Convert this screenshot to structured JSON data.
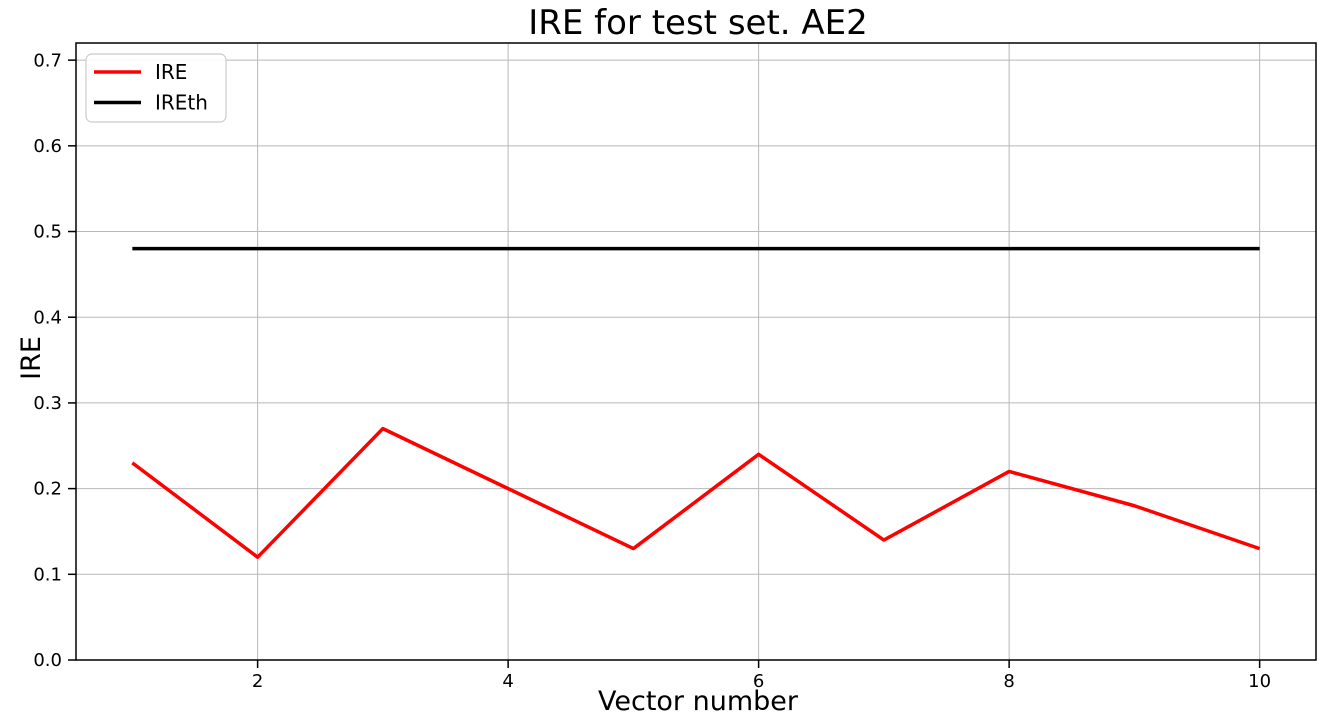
{
  "figure": {
    "background": "#ffffff"
  },
  "chart_data": {
    "type": "line",
    "title": "IRE for test set. AE2",
    "xlabel": "Vector number",
    "ylabel": "IRE",
    "x": [
      1,
      2,
      3,
      4,
      5,
      6,
      7,
      8,
      9,
      10
    ],
    "series": [
      {
        "name": "IRE",
        "color": "#ff0000",
        "values": [
          0.23,
          0.12,
          0.27,
          0.2,
          0.13,
          0.24,
          0.14,
          0.22,
          0.18,
          0.13
        ]
      },
      {
        "name": "IREth",
        "color": "#000000",
        "values": [
          0.48,
          0.48,
          0.48,
          0.48,
          0.48,
          0.48,
          0.48,
          0.48,
          0.48,
          0.48
        ]
      }
    ],
    "xlim": [
      0.55,
      10.45
    ],
    "ylim": [
      0,
      0.72
    ],
    "xticks": {
      "values": [
        2,
        4,
        6,
        8,
        10
      ],
      "labels": [
        "2",
        "4",
        "6",
        "8",
        "10"
      ]
    },
    "yticks": {
      "values": [
        0,
        0.1,
        0.2,
        0.3,
        0.4,
        0.5,
        0.6,
        0.7
      ],
      "labels": [
        "0.0",
        "0.1",
        "0.2",
        "0.3",
        "0.4",
        "0.5",
        "0.6",
        "0.7"
      ]
    },
    "grid": true,
    "legend": {
      "position": "upper left",
      "items": [
        "IRE",
        "IREth"
      ]
    },
    "colors": {
      "grid": "#b8b8b8",
      "spine": "#000000",
      "tick": "#000000",
      "legend_border": "#cccccc",
      "legend_bg": "#ffffff"
    }
  }
}
